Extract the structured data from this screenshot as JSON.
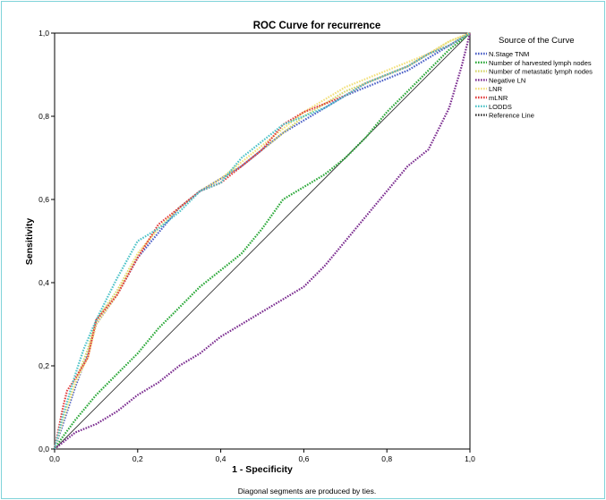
{
  "chart_data": {
    "type": "line",
    "title": "ROC Curve for recurrence",
    "xlabel": "1 - Specificity",
    "ylabel": "Sensitivity",
    "xlim": [
      0,
      1
    ],
    "ylim": [
      0,
      1
    ],
    "x_ticks": [
      "0,0",
      "0,2",
      "0,4",
      "0,6",
      "0,8",
      "1,0"
    ],
    "y_ticks": [
      "0,0",
      "0,2",
      "0,4",
      "0,6",
      "0,8",
      "1,0"
    ],
    "legend_title": "Source of the Curve",
    "legend_position": "right",
    "footnote": "Diagonal segments are produced by ties.",
    "series": [
      {
        "name": "N.Stage TNM",
        "color": "#4a5fc7",
        "x": [
          0,
          0.02,
          0.05,
          0.08,
          0.1,
          0.15,
          0.2,
          0.25,
          0.3,
          0.35,
          0.4,
          0.45,
          0.5,
          0.55,
          0.6,
          0.65,
          0.7,
          0.75,
          0.8,
          0.85,
          0.9,
          0.95,
          1.0
        ],
        "y": [
          0,
          0.06,
          0.15,
          0.23,
          0.3,
          0.37,
          0.46,
          0.52,
          0.58,
          0.62,
          0.65,
          0.68,
          0.72,
          0.76,
          0.79,
          0.82,
          0.85,
          0.87,
          0.89,
          0.91,
          0.94,
          0.97,
          1.0
        ]
      },
      {
        "name": "Number of harvested lymph nodes",
        "color": "#2aa838",
        "x": [
          0,
          0.02,
          0.05,
          0.1,
          0.15,
          0.2,
          0.25,
          0.3,
          0.35,
          0.4,
          0.45,
          0.5,
          0.55,
          0.6,
          0.65,
          0.7,
          0.75,
          0.8,
          0.85,
          0.9,
          0.95,
          1.0
        ],
        "y": [
          0,
          0.03,
          0.07,
          0.13,
          0.18,
          0.23,
          0.29,
          0.34,
          0.39,
          0.43,
          0.47,
          0.53,
          0.6,
          0.63,
          0.66,
          0.7,
          0.75,
          0.81,
          0.86,
          0.91,
          0.96,
          1.0
        ]
      },
      {
        "name": "Number of metastatic lymph nodes",
        "color": "#d6d66a",
        "x": [
          0,
          0.02,
          0.05,
          0.08,
          0.1,
          0.15,
          0.2,
          0.25,
          0.3,
          0.35,
          0.4,
          0.45,
          0.5,
          0.55,
          0.6,
          0.65,
          0.7,
          0.75,
          0.8,
          0.85,
          0.9,
          0.95,
          1.0
        ],
        "y": [
          0,
          0.07,
          0.16,
          0.24,
          0.31,
          0.38,
          0.47,
          0.53,
          0.58,
          0.62,
          0.65,
          0.68,
          0.72,
          0.76,
          0.8,
          0.83,
          0.86,
          0.88,
          0.9,
          0.92,
          0.95,
          0.98,
          1.0
        ]
      },
      {
        "name": "Negative LN",
        "color": "#7a2b8f",
        "x": [
          0,
          0.05,
          0.1,
          0.15,
          0.2,
          0.25,
          0.3,
          0.35,
          0.4,
          0.45,
          0.5,
          0.55,
          0.6,
          0.65,
          0.7,
          0.75,
          0.8,
          0.85,
          0.9,
          0.93,
          0.95,
          0.98,
          1.0
        ],
        "y": [
          0,
          0.04,
          0.06,
          0.09,
          0.13,
          0.16,
          0.2,
          0.23,
          0.27,
          0.3,
          0.33,
          0.36,
          0.39,
          0.44,
          0.5,
          0.56,
          0.62,
          0.68,
          0.72,
          0.78,
          0.82,
          0.92,
          1.0
        ]
      },
      {
        "name": "LNR",
        "color": "#f2e07a",
        "x": [
          0,
          0.02,
          0.05,
          0.08,
          0.1,
          0.15,
          0.2,
          0.25,
          0.3,
          0.35,
          0.4,
          0.45,
          0.5,
          0.55,
          0.6,
          0.65,
          0.7,
          0.75,
          0.8,
          0.85,
          0.9,
          0.95,
          1.0
        ],
        "y": [
          0,
          0.07,
          0.16,
          0.22,
          0.3,
          0.37,
          0.47,
          0.53,
          0.58,
          0.62,
          0.65,
          0.69,
          0.73,
          0.77,
          0.81,
          0.84,
          0.87,
          0.89,
          0.91,
          0.93,
          0.95,
          0.98,
          1.0
        ]
      },
      {
        "name": "mLNR",
        "color": "#e23b3b",
        "x": [
          0,
          0.02,
          0.03,
          0.05,
          0.08,
          0.1,
          0.15,
          0.2,
          0.25,
          0.3,
          0.35,
          0.4,
          0.45,
          0.5,
          0.55,
          0.6,
          0.65,
          0.7,
          0.75,
          0.8,
          0.85,
          0.9,
          0.95,
          1.0
        ],
        "y": [
          0,
          0.1,
          0.14,
          0.17,
          0.22,
          0.31,
          0.37,
          0.46,
          0.54,
          0.58,
          0.62,
          0.64,
          0.68,
          0.72,
          0.78,
          0.81,
          0.83,
          0.85,
          0.88,
          0.9,
          0.92,
          0.95,
          0.97,
          1.0
        ]
      },
      {
        "name": "LODDS",
        "color": "#4dc3c8",
        "x": [
          0,
          0.02,
          0.05,
          0.07,
          0.1,
          0.13,
          0.15,
          0.2,
          0.25,
          0.3,
          0.35,
          0.4,
          0.45,
          0.5,
          0.55,
          0.6,
          0.65,
          0.7,
          0.75,
          0.8,
          0.85,
          0.9,
          0.95,
          1.0
        ],
        "y": [
          0,
          0.08,
          0.18,
          0.24,
          0.31,
          0.37,
          0.41,
          0.5,
          0.53,
          0.57,
          0.62,
          0.64,
          0.7,
          0.74,
          0.78,
          0.8,
          0.82,
          0.85,
          0.88,
          0.9,
          0.92,
          0.95,
          0.97,
          1.0
        ]
      },
      {
        "name": "Reference Line",
        "color": "#333333",
        "x": [
          0,
          1
        ],
        "y": [
          0,
          1
        ]
      }
    ]
  }
}
